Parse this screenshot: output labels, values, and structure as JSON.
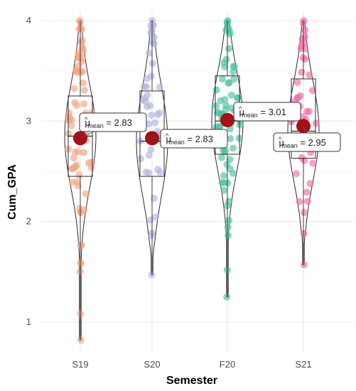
{
  "chart_data": {
    "type": "violin",
    "xlabel": "Semester",
    "ylabel": "Cum_GPA",
    "categories": [
      "S19",
      "S20",
      "F20",
      "S21"
    ],
    "ylim": [
      0.7,
      4.1
    ],
    "yticks": [
      1,
      2,
      3,
      4
    ],
    "grid": true,
    "colors": [
      "#f4a582",
      "#b3b3e0",
      "#4fc2a3",
      "#ef6fa8"
    ],
    "mean_color": "#a50f15",
    "groups": [
      {
        "category": "S19",
        "min": 0.82,
        "q1": 2.45,
        "median": 2.85,
        "q3": 3.25,
        "max": 4.0,
        "mean": 2.83,
        "mean_label": "2.83",
        "jitter_points": 70
      },
      {
        "category": "S20",
        "min": 1.47,
        "q1": 2.45,
        "median": 2.8,
        "q3": 3.3,
        "max": 4.0,
        "mean": 2.83,
        "mean_label": "2.83",
        "jitter_points": 50
      },
      {
        "category": "F20",
        "min": 1.25,
        "q1": 2.67,
        "median": 3.0,
        "q3": 3.45,
        "max": 4.0,
        "mean": 3.01,
        "mean_label": "3.01",
        "jitter_points": 70
      },
      {
        "category": "S21",
        "min": 1.57,
        "q1": 2.63,
        "median": 2.9,
        "q3": 3.42,
        "max": 4.0,
        "mean": 2.95,
        "mean_label": "2.95",
        "jitter_points": 45
      }
    ],
    "annotation_prefix": "μ",
    "annotation_subscript": "mean",
    "annotation_joiner": " = "
  }
}
